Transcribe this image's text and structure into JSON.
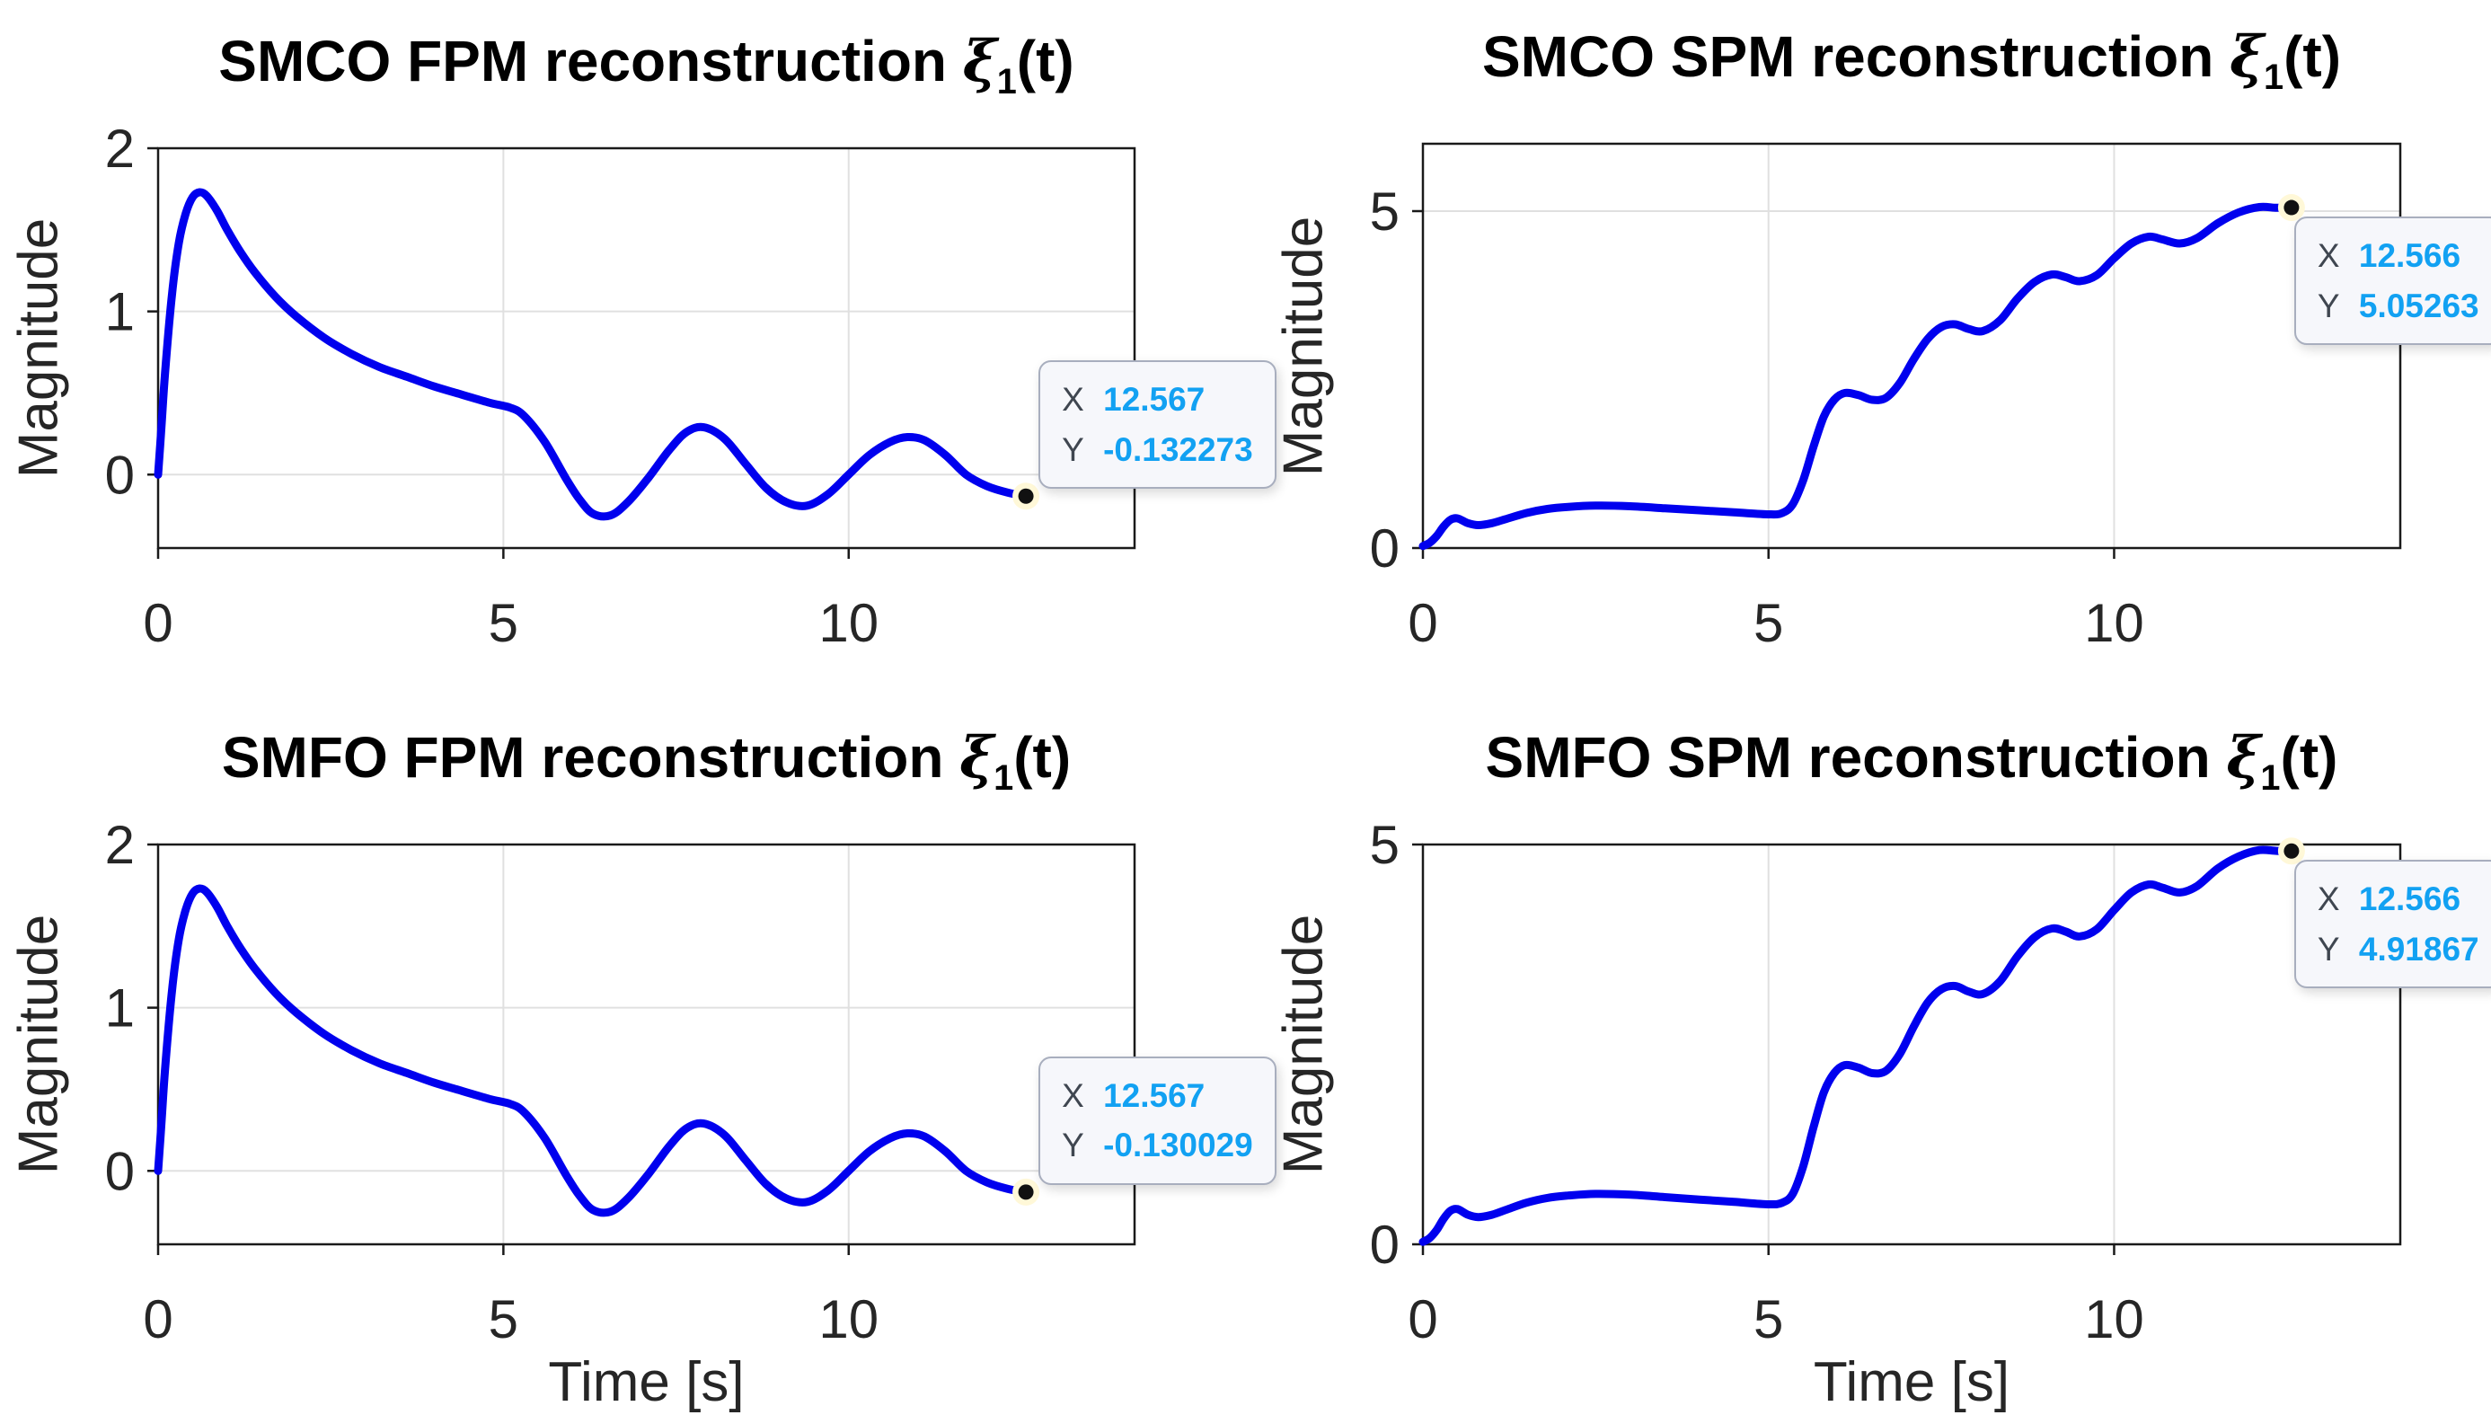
{
  "colors": {
    "curve": "#0000EE",
    "grid": "#E0E0E0",
    "axis": "#1A1A1A",
    "tick_label": "#262626",
    "datatip_value": "#12A1F2",
    "datatip_label": "#3F4650",
    "datatip_bg": "#F6F7FB",
    "marker_core": "#111111",
    "marker_ring": "#FFF8D8"
  },
  "chart_data": [
    {
      "id": "smco-fpm",
      "type": "line",
      "title": {
        "prefix": "SMCO FPM reconstruction ",
        "symbol": "ξ",
        "subscript": "1",
        "suffix": "(t)"
      },
      "xlabel": "",
      "ylabel": "Magnitude",
      "xlim": [
        0,
        14.14
      ],
      "ylim": [
        -0.45,
        2
      ],
      "xticks": [
        0,
        5,
        10
      ],
      "yticks": [
        0,
        1,
        2
      ],
      "grid": true,
      "x": [
        0,
        0.05,
        0.1,
        0.2,
        0.3,
        0.4,
        0.5,
        0.6,
        0.7,
        0.85,
        1,
        1.2,
        1.4,
        1.7,
        2,
        2.4,
        2.8,
        3.2,
        3.6,
        4,
        4.4,
        4.8,
        5.1,
        5.3,
        5.6,
        5.9,
        6.1,
        6.3,
        6.55,
        6.8,
        7.1,
        7.4,
        7.65,
        7.9,
        8.2,
        8.5,
        8.8,
        9.1,
        9.4,
        9.7,
        10,
        10.3,
        10.6,
        10.85,
        11.1,
        11.4,
        11.7,
        12,
        12.3,
        12.567
      ],
      "y": [
        0,
        0.3,
        0.62,
        1.1,
        1.42,
        1.6,
        1.7,
        1.73,
        1.71,
        1.62,
        1.5,
        1.36,
        1.24,
        1.09,
        0.97,
        0.84,
        0.74,
        0.66,
        0.6,
        0.54,
        0.49,
        0.44,
        0.41,
        0.36,
        0.2,
        -0.02,
        -0.15,
        -0.24,
        -0.25,
        -0.17,
        -0.02,
        0.15,
        0.26,
        0.29,
        0.22,
        0.07,
        -0.08,
        -0.17,
        -0.19,
        -0.12,
        0,
        0.12,
        0.2,
        0.23,
        0.21,
        0.12,
        0,
        -0.07,
        -0.11,
        -0.132273
      ],
      "datatip": {
        "x_label": "X",
        "y_label": "Y",
        "x_value": "12.567",
        "y_value": "-0.132273",
        "anchor": "up-right"
      }
    },
    {
      "id": "smco-spm",
      "type": "line",
      "title": {
        "prefix": "SMCO SPM reconstruction ",
        "symbol": "ξ",
        "subscript": "1",
        "suffix": "(t)"
      },
      "xlabel": "",
      "ylabel": "Magnitude",
      "xlim": [
        0,
        14.14
      ],
      "ylim": [
        0,
        6
      ],
      "xticks": [
        0,
        5,
        10
      ],
      "yticks": [
        0,
        5
      ],
      "grid": true,
      "x": [
        0,
        0.1,
        0.2,
        0.3,
        0.4,
        0.5,
        0.65,
        0.8,
        1,
        1.2,
        1.5,
        1.8,
        2.1,
        2.5,
        3,
        3.5,
        4,
        4.5,
        5,
        5.2,
        5.35,
        5.5,
        5.65,
        5.8,
        5.95,
        6.1,
        6.3,
        6.5,
        6.7,
        6.9,
        7.1,
        7.3,
        7.5,
        7.7,
        7.9,
        8.1,
        8.35,
        8.6,
        8.85,
        9.1,
        9.3,
        9.5,
        9.75,
        10,
        10.25,
        10.5,
        10.7,
        10.95,
        11.2,
        11.5,
        11.8,
        12.1,
        12.35,
        12.566
      ],
      "y": [
        0.03,
        0.08,
        0.18,
        0.32,
        0.42,
        0.44,
        0.37,
        0.34,
        0.37,
        0.43,
        0.52,
        0.58,
        0.61,
        0.63,
        0.62,
        0.59,
        0.56,
        0.53,
        0.5,
        0.52,
        0.65,
        1,
        1.5,
        1.95,
        2.2,
        2.3,
        2.27,
        2.2,
        2.23,
        2.45,
        2.8,
        3.1,
        3.28,
        3.32,
        3.25,
        3.22,
        3.38,
        3.7,
        3.95,
        4.06,
        4.02,
        3.96,
        4.05,
        4.3,
        4.52,
        4.62,
        4.58,
        4.52,
        4.6,
        4.82,
        4.98,
        5.06,
        5.05,
        5.05263
      ],
      "datatip": {
        "x_label": "X",
        "y_label": "Y",
        "x_value": "12.566",
        "y_value": "5.05263",
        "anchor": "down-right"
      }
    },
    {
      "id": "smfo-fpm",
      "type": "line",
      "title": {
        "prefix": "SMFO FPM reconstruction ",
        "symbol": "ξ",
        "subscript": "1",
        "suffix": "(t)"
      },
      "xlabel": "Time [s]",
      "ylabel": "Magnitude",
      "xlim": [
        0,
        14.14
      ],
      "ylim": [
        -0.45,
        2
      ],
      "xticks": [
        0,
        5,
        10
      ],
      "yticks": [
        0,
        1,
        2
      ],
      "grid": true,
      "x": [
        0,
        0.05,
        0.1,
        0.2,
        0.3,
        0.4,
        0.5,
        0.6,
        0.7,
        0.85,
        1,
        1.2,
        1.4,
        1.7,
        2,
        2.4,
        2.8,
        3.2,
        3.6,
        4,
        4.4,
        4.8,
        5.1,
        5.3,
        5.6,
        5.9,
        6.1,
        6.3,
        6.55,
        6.8,
        7.1,
        7.4,
        7.65,
        7.9,
        8.2,
        8.5,
        8.8,
        9.1,
        9.4,
        9.7,
        10,
        10.3,
        10.6,
        10.85,
        11.1,
        11.4,
        11.7,
        12,
        12.3,
        12.567
      ],
      "y": [
        0,
        0.3,
        0.62,
        1.1,
        1.42,
        1.6,
        1.7,
        1.73,
        1.71,
        1.62,
        1.5,
        1.36,
        1.24,
        1.09,
        0.97,
        0.84,
        0.74,
        0.66,
        0.6,
        0.54,
        0.49,
        0.44,
        0.41,
        0.36,
        0.2,
        -0.02,
        -0.15,
        -0.24,
        -0.25,
        -0.17,
        -0.02,
        0.15,
        0.26,
        0.29,
        0.22,
        0.07,
        -0.08,
        -0.17,
        -0.19,
        -0.12,
        0,
        0.12,
        0.2,
        0.23,
        0.21,
        0.12,
        0,
        -0.07,
        -0.11,
        -0.130029
      ],
      "datatip": {
        "x_label": "X",
        "y_label": "Y",
        "x_value": "12.567",
        "y_value": "-0.130029",
        "anchor": "up-right"
      }
    },
    {
      "id": "smfo-spm",
      "type": "line",
      "title": {
        "prefix": "SMFO SPM reconstruction ",
        "symbol": "ξ",
        "subscript": "1",
        "suffix": "(t)"
      },
      "xlabel": "Time [s]",
      "ylabel": "Magnitude",
      "xlim": [
        0,
        14.14
      ],
      "ylim": [
        0,
        5
      ],
      "xticks": [
        0,
        5,
        10
      ],
      "yticks": [
        0,
        5
      ],
      "grid": true,
      "x": [
        0,
        0.1,
        0.2,
        0.3,
        0.4,
        0.5,
        0.65,
        0.8,
        1,
        1.2,
        1.5,
        1.8,
        2.1,
        2.5,
        3,
        3.5,
        4,
        4.5,
        5,
        5.2,
        5.35,
        5.5,
        5.65,
        5.8,
        5.95,
        6.1,
        6.3,
        6.5,
        6.7,
        6.9,
        7.1,
        7.3,
        7.5,
        7.7,
        7.9,
        8.1,
        8.35,
        8.6,
        8.85,
        9.1,
        9.3,
        9.5,
        9.75,
        10,
        10.25,
        10.5,
        10.7,
        10.95,
        11.2,
        11.5,
        11.8,
        12.1,
        12.35,
        12.566
      ],
      "y": [
        0.03,
        0.08,
        0.18,
        0.32,
        0.42,
        0.44,
        0.37,
        0.34,
        0.37,
        0.43,
        0.52,
        0.58,
        0.61,
        0.63,
        0.62,
        0.59,
        0.56,
        0.53,
        0.5,
        0.52,
        0.63,
        0.97,
        1.46,
        1.9,
        2.14,
        2.24,
        2.21,
        2.14,
        2.17,
        2.38,
        2.72,
        3.02,
        3.19,
        3.23,
        3.16,
        3.13,
        3.29,
        3.6,
        3.84,
        3.95,
        3.91,
        3.85,
        3.94,
        4.18,
        4.4,
        4.5,
        4.46,
        4.4,
        4.48,
        4.7,
        4.85,
        4.93,
        4.92,
        4.91867
      ],
      "datatip": {
        "x_label": "X",
        "y_label": "Y",
        "x_value": "12.566",
        "y_value": "4.91867",
        "anchor": "down-right"
      }
    }
  ]
}
